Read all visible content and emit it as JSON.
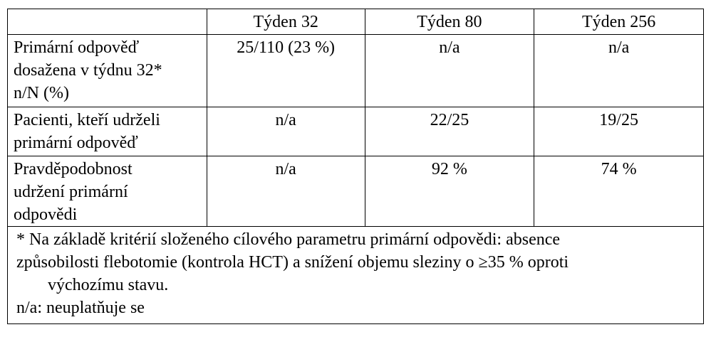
{
  "header": [
    "",
    "Týden 32",
    "Týden 80",
    "Týden 256"
  ],
  "rows": [
    {
      "label": "Primární odpověď dosažena v týdnu 32* n/N (%)",
      "label_lines": [
        "Primární odpověď",
        "dosažena v týdnu 32*",
        "n/N (%)"
      ],
      "values": [
        "25/110 (23 %)",
        "n/a",
        "n/a"
      ]
    },
    {
      "label": "Pacienti, kteří udrželi primární odpověď",
      "label_lines": [
        "Pacienti, kteří udrželi",
        "primární odpověď"
      ],
      "values": [
        "n/a",
        "22/25",
        "19/25"
      ]
    },
    {
      "label": "Pravděpodobnost udržení primární odpovědi",
      "label_lines": [
        "Pravděpodobnost",
        "udržení primární",
        "odpovědi"
      ],
      "values": [
        "n/a",
        "92 %",
        "74 %"
      ]
    }
  ],
  "footnote": {
    "lines": [
      "* Na základě kritérií složeného cílového parametru primární odpovědi: absence",
      "způsobilosti flebotomie (kontrola HCT) a snížení objemu sleziny o ≥35 % oproti",
      "výchozímu stavu."
    ],
    "abbrev": "n/a: neuplatňuje se"
  }
}
